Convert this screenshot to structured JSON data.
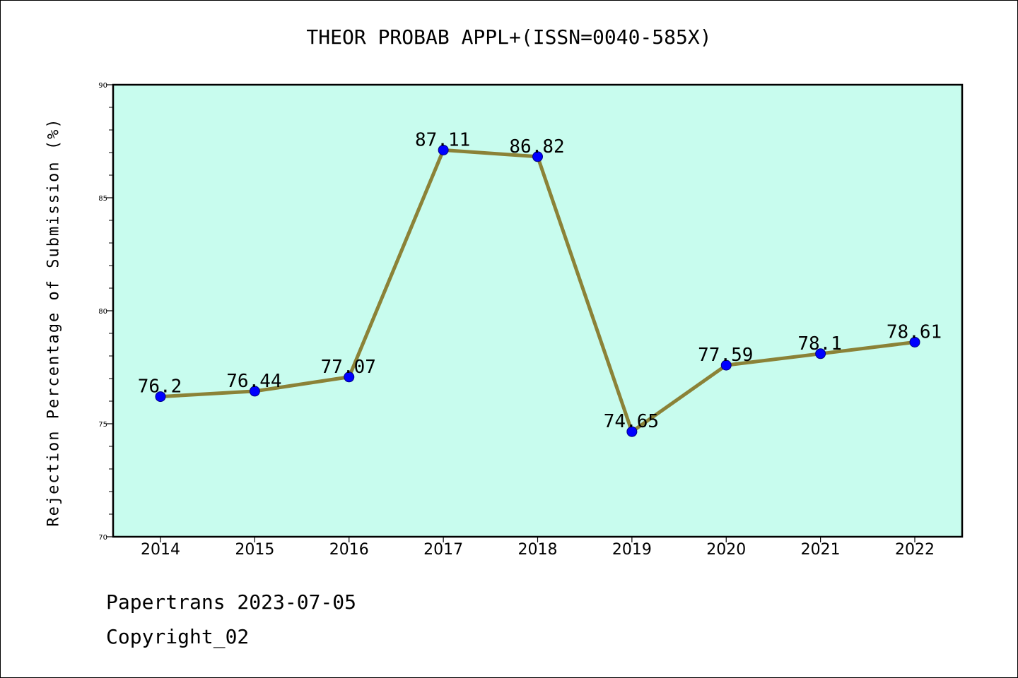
{
  "chart_data": {
    "type": "line",
    "title": "THEOR PROBAB APPL+(ISSN=0040-585X)",
    "xlabel": "",
    "ylabel": "Rejection Percentage of Submission (%)",
    "categories": [
      "2014",
      "2015",
      "2016",
      "2017",
      "2018",
      "2019",
      "2020",
      "2021",
      "2022"
    ],
    "series": [
      {
        "values": [
          76.2,
          76.44,
          77.07,
          87.11,
          86.82,
          74.65,
          77.59,
          78.1,
          78.61
        ],
        "labels": [
          "76.2",
          "76.44",
          "77.07",
          "87.11",
          "86.82",
          "74.65",
          "77.59",
          "78.1",
          "78.61"
        ]
      }
    ],
    "ylim": [
      70,
      90
    ],
    "yticks": [
      "70",
      "75",
      "80",
      "85",
      "90"
    ],
    "grid": false,
    "legend": "none",
    "colors": {
      "plot_background": "#c8fcee",
      "line": "#8b8237",
      "marker": "#0000ff",
      "axes": "#000000"
    }
  },
  "footer": {
    "line1": "Papertrans 2023-07-05",
    "line2": "Copyright_02"
  }
}
